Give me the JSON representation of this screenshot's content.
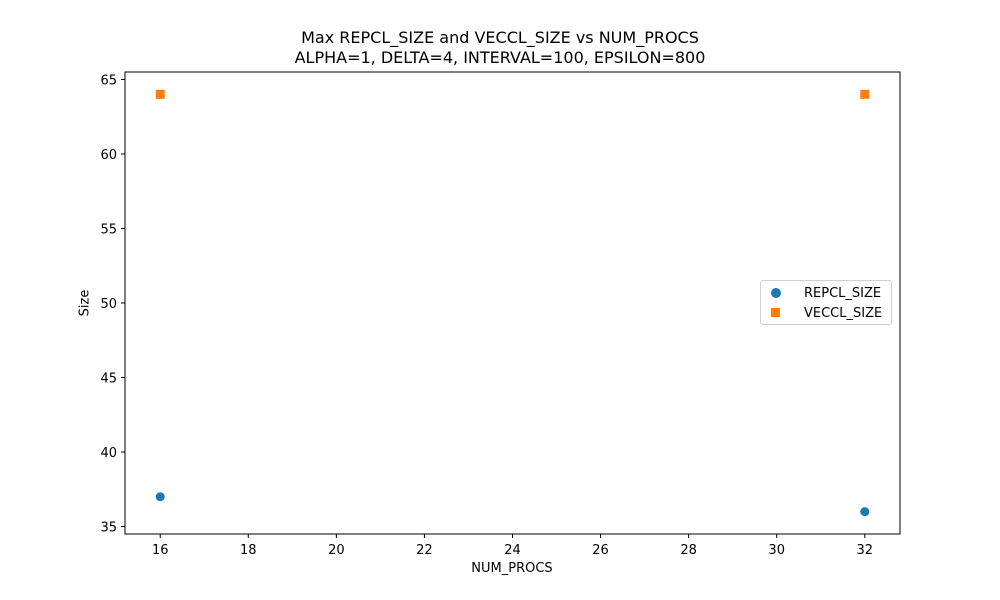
{
  "chart_data": {
    "type": "scatter",
    "title": "Max REPCL_SIZE and VECCL_SIZE vs NUM_PROCS",
    "subtitle": "ALPHA=1, DELTA=4, INTERVAL=100, EPSILON=800",
    "xlabel": "NUM_PROCS",
    "ylabel": "Size",
    "xlim": [
      15.2,
      32.8
    ],
    "ylim": [
      34.5,
      65.5
    ],
    "x_ticks": [
      16,
      18,
      20,
      22,
      24,
      26,
      28,
      30,
      32
    ],
    "y_ticks": [
      35,
      40,
      45,
      50,
      55,
      60,
      65
    ],
    "grid": false,
    "legend_position": "center-right",
    "series": [
      {
        "name": "REPCL_SIZE",
        "marker": "circle",
        "color": "#1f77b4",
        "points": [
          {
            "x": 16,
            "y": 37
          },
          {
            "x": 32,
            "y": 36
          }
        ]
      },
      {
        "name": "VECCL_SIZE",
        "marker": "square",
        "color": "#ff7f0e",
        "points": [
          {
            "x": 16,
            "y": 64
          },
          {
            "x": 32,
            "y": 64
          }
        ]
      }
    ]
  }
}
